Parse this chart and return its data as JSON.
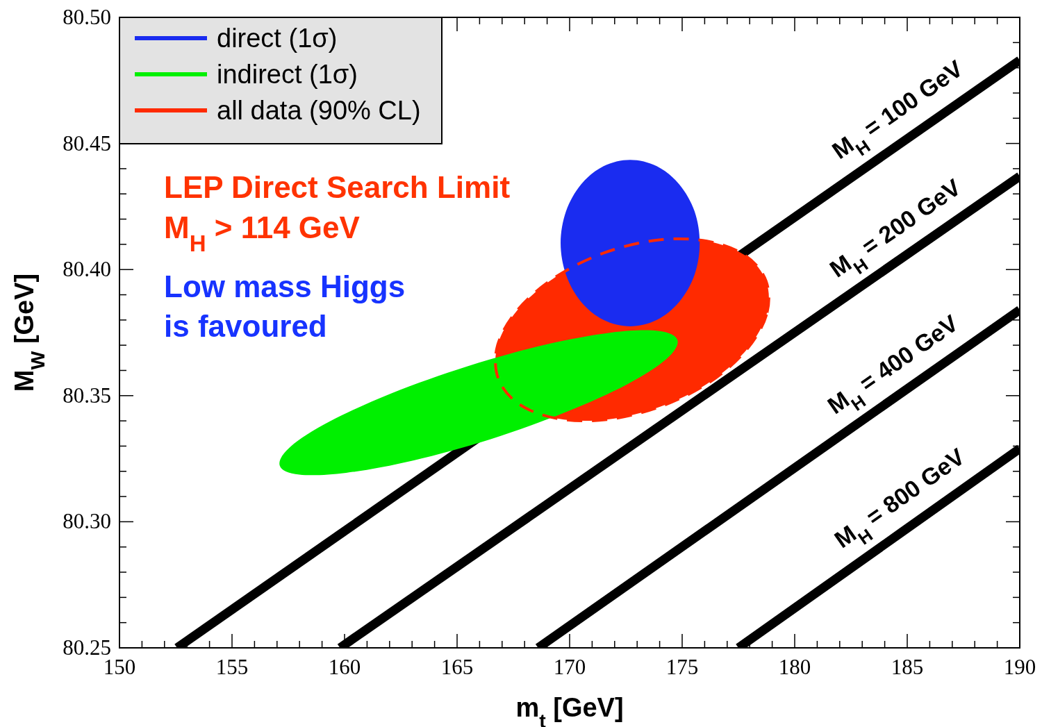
{
  "chart_data": {
    "type": "area",
    "xlabel": "m$_{t}$ [GeV]",
    "ylabel": "M$_{W}$ [GeV]",
    "xlim": [
      150,
      190
    ],
    "ylim": [
      80.25,
      80.5
    ],
    "xticks": [
      150,
      {
        "value": 151,
        "label": null
      },
      {
        "value": 152,
        "label": null
      },
      {
        "value": 153,
        "label": null
      },
      {
        "value": 154,
        "label": null
      },
      155,
      {
        "value": 156,
        "label": null
      },
      {
        "value": 157,
        "label": null
      },
      {
        "value": 158,
        "label": null
      },
      {
        "value": 159,
        "label": null
      },
      160,
      {
        "value": 161,
        "label": null
      },
      {
        "value": 162,
        "label": null
      },
      {
        "value": 163,
        "label": null
      },
      {
        "value": 164,
        "label": null
      },
      165,
      {
        "value": 166,
        "label": null
      },
      {
        "value": 167,
        "label": null
      },
      {
        "value": 168,
        "label": null
      },
      {
        "value": 169,
        "label": null
      },
      170,
      {
        "value": 171,
        "label": null
      },
      {
        "value": 172,
        "label": null
      },
      {
        "value": 173,
        "label": null
      },
      {
        "value": 174,
        "label": null
      },
      175,
      {
        "value": 176,
        "label": null
      },
      {
        "value": 177,
        "label": null
      },
      {
        "value": 178,
        "label": null
      },
      {
        "value": 179,
        "label": null
      },
      180,
      {
        "value": 181,
        "label": null
      },
      {
        "value": 182,
        "label": null
      },
      {
        "value": 183,
        "label": null
      },
      {
        "value": 184,
        "label": null
      },
      185,
      {
        "value": 186,
        "label": null
      },
      {
        "value": 187,
        "label": null
      },
      {
        "value": 188,
        "label": null
      },
      {
        "value": 189,
        "label": null
      },
      190
    ],
    "yticks": [
      80.25,
      {
        "value": 80.26,
        "label": null
      },
      {
        "value": 80.27,
        "label": null
      },
      {
        "value": 80.28,
        "label": null
      },
      {
        "value": 80.29,
        "label": null
      },
      {
        "value": 80.3,
        "label": "80.30"
      },
      {
        "value": 80.31,
        "label": null
      },
      {
        "value": 80.32,
        "label": null
      },
      {
        "value": 80.33,
        "label": null
      },
      {
        "value": 80.34,
        "label": null
      },
      80.35,
      {
        "value": 80.36,
        "label": null
      },
      {
        "value": 80.37,
        "label": null
      },
      {
        "value": 80.38,
        "label": null
      },
      {
        "value": 80.39,
        "label": null
      },
      {
        "value": 80.4,
        "label": "80.40"
      },
      {
        "value": 80.41,
        "label": null
      },
      {
        "value": 80.42,
        "label": null
      },
      {
        "value": 80.43,
        "label": null
      },
      {
        "value": 80.44,
        "label": null
      },
      80.45,
      {
        "value": 80.46,
        "label": null
      },
      {
        "value": 80.47,
        "label": null
      },
      {
        "value": 80.48,
        "label": null
      },
      {
        "value": 80.49,
        "label": null
      },
      {
        "value": 80.5,
        "label": "80.50"
      }
    ],
    "legend": "top left",
    "annotations": [
      "LEP Direct Search Limit",
      "M$_{H}$ > 114 GeV",
      "Low mass Higgs",
      "is favoured",
      {
        "text": "M$_{H}$ = 100 GeV",
        "x": 185.3,
        "y": 80.454
      },
      {
        "text": "M$_{H}$ = 200 GeV",
        "x": 185.2,
        "y": 80.407
      },
      {
        "text": "M$_{H}$ = 400 GeV",
        "x": 185.1,
        "y": 80.353
      },
      {
        "text": "M$_{H}$ = 800 GeV",
        "x": 185.4,
        "y": 80.3
      }
    ],
    "series": [
      {
        "name": "all data (90% CL)",
        "color": "#ff2a00",
        "line_style": "dashed",
        "x": [
          178.73,
          178.75,
          177.86,
          176.21,
          174.02,
          171.65,
          169.46,
          167.76,
          166.83,
          166.8,
          167.69,
          169.35,
          171.53,
          173.9,
          176.1,
          177.8
        ],
        "values": [
          80.3954,
          80.3822,
          80.3682,
          80.3553,
          80.3456,
          80.3405,
          80.3409,
          80.3466,
          80.3568,
          80.37,
          80.384,
          80.3969,
          80.4066,
          80.4117,
          80.4113,
          80.4056
        ]
      },
      {
        "name": "indirect (1σ)",
        "color": "#00f000",
        "x": [
          174.79,
          174.31,
          172.56,
          169.81,
          166.47,
          163.05,
          160.07,
          157.99,
          157.12,
          157.6,
          159.35,
          162.1,
          165.44,
          168.87,
          171.84,
          173.92
        ],
        "values": [
          80.3721,
          80.3646,
          80.3545,
          80.3434,
          80.3327,
          80.3243,
          80.3194,
          80.3187,
          80.3223,
          80.3298,
          80.3398,
          80.351,
          80.3616,
          80.3701,
          80.375,
          80.3757
        ]
      },
      {
        "name": "direct (1σ)",
        "color": "#1a2cf0",
        "x": [
          175.78,
          175.55,
          174.87,
          173.87,
          172.69,
          171.51,
          170.51,
          169.84,
          169.6,
          169.84,
          170.51,
          171.51,
          172.69,
          173.87,
          174.87,
          175.55
        ],
        "values": [
          80.4105,
          80.4231,
          80.4338,
          80.441,
          80.4435,
          80.441,
          80.4338,
          80.4231,
          80.4105,
          80.3979,
          80.3872,
          80.38,
          80.3775,
          80.38,
          80.3872,
          80.3979
        ]
      },
      {
        "type": "line",
        "color": "#000000",
        "x": [
          152.56,
          190
        ],
        "values": [
          80.25,
          80.483
        ]
      },
      {
        "type": "line",
        "color": "#000000",
        "x": [
          159.8,
          190
        ],
        "values": [
          80.25,
          80.437
        ]
      },
      {
        "type": "line",
        "color": "#000000",
        "x": [
          168.6,
          190
        ],
        "values": [
          80.25,
          80.384
        ]
      },
      {
        "type": "line",
        "color": "#000000",
        "x": [
          177.5,
          190
        ],
        "values": [
          80.25,
          80.329
        ]
      }
    ]
  }
}
